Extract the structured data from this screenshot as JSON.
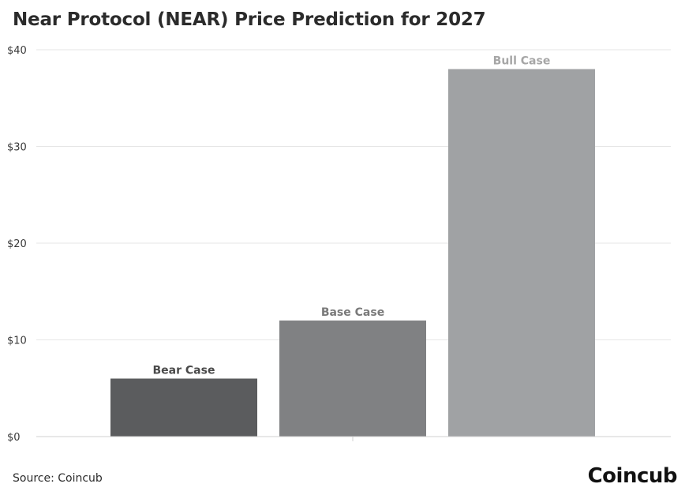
{
  "title": "Near Protocol (NEAR) Price Prediction for 2027",
  "source": "Source: Coincub",
  "brand": "Coincub",
  "chart_data": {
    "type": "bar",
    "categories": [
      "Bear Case",
      "Base Case",
      "Bull Case"
    ],
    "values": [
      6,
      12,
      38
    ],
    "colors": [
      "#5b5c5e",
      "#808183",
      "#a0a2a4"
    ],
    "label_colors": [
      "#4a4a4a",
      "#7a7a7a",
      "#a6a6a6"
    ],
    "ylim": [
      0,
      40
    ],
    "yticks": [
      0,
      10,
      20,
      30,
      40
    ],
    "ytick_labels": [
      "$0",
      "$10",
      "$20",
      "$30",
      "$40"
    ],
    "grid": true,
    "title": "Near Protocol (NEAR) Price Prediction for 2027",
    "xlabel": "",
    "ylabel": ""
  }
}
